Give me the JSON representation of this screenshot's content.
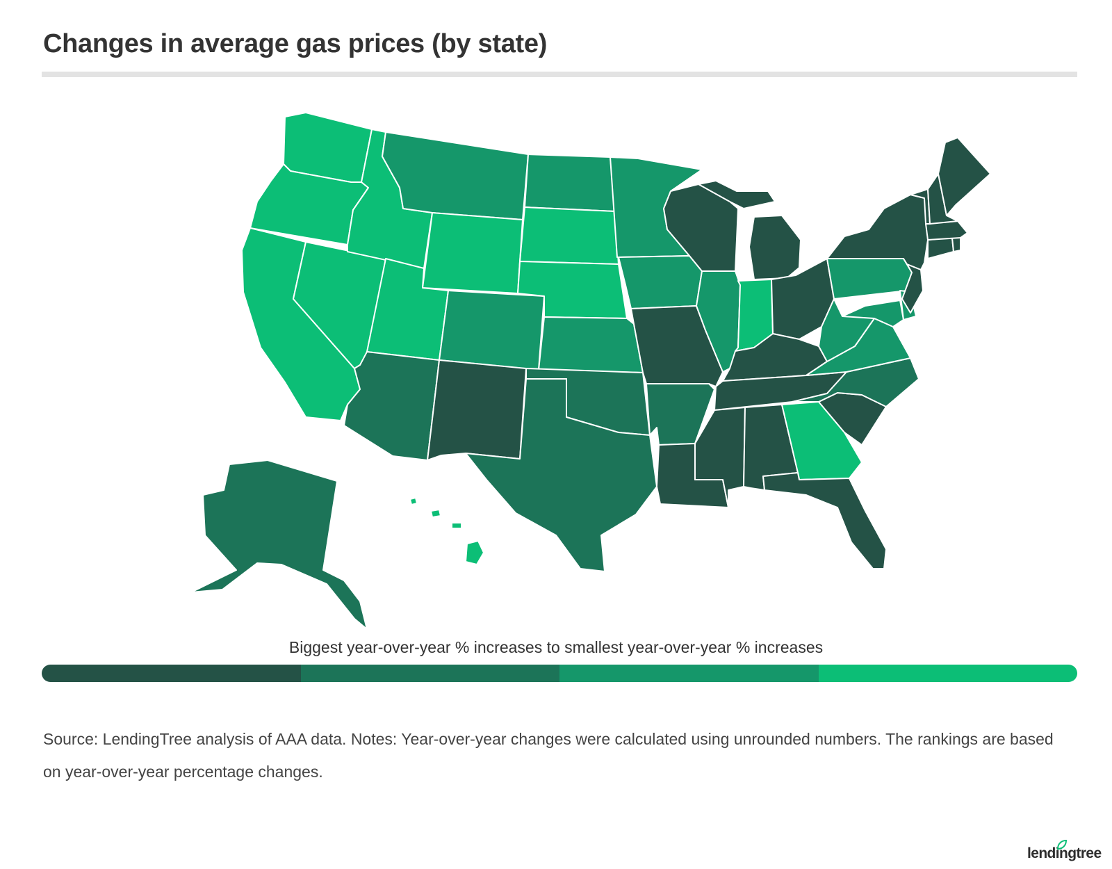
{
  "title": "Changes in average gas prices (by state)",
  "legend": {
    "label": "Biggest year-over-year % increases to smallest year-over-year % increases",
    "colors": [
      "#245246",
      "#1c7458",
      "#15976a",
      "#0cbe76"
    ]
  },
  "source": "Source: LendingTree analysis of AAA data. Notes: Year-over-year changes were calculated using unrounded numbers. The rankings are based on year-over-year percentage changes.",
  "logo": "lendingtree",
  "tiers": {
    "WA": 4,
    "OR": 4,
    "CA": 4,
    "NV": 4,
    "ID": 4,
    "UT": 4,
    "WY": 4,
    "SD": 4,
    "NE": 4,
    "IN": 4,
    "GA": 4,
    "HI": 4,
    "MT": 3,
    "ND": 3,
    "MN": 3,
    "CO": 3,
    "KS": 3,
    "IA": 3,
    "IL": 3,
    "PA": 3,
    "WV": 3,
    "VA": 3,
    "MD": 3,
    "DE": 3,
    "AZ": 2,
    "TX": 2,
    "OK": 2,
    "AR": 2,
    "NC": 2,
    "AK": 2,
    "NM": 1,
    "MO": 1,
    "WI": 1,
    "MI": 1,
    "OH": 1,
    "KY": 1,
    "TN": 1,
    "MS": 1,
    "AL": 1,
    "LA": 1,
    "FL": 1,
    "SC": 1,
    "NY": 1,
    "NJ": 1,
    "CT": 1,
    "RI": 1,
    "MA": 1,
    "VT": 1,
    "NH": 1,
    "ME": 1
  }
}
